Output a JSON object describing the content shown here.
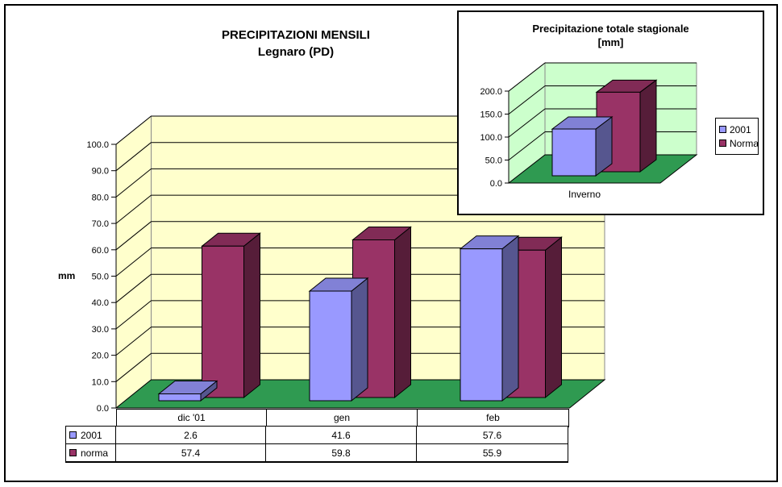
{
  "title": {
    "line1": "PRECIPITAZIONI MENSILI",
    "line2": "Legnaro (PD)"
  },
  "chart_data": [
    {
      "id": "main-monthly-precipitation",
      "type": "bar",
      "style": "3d-column",
      "title": "PRECIPITAZIONI MENSILI Legnaro (PD)",
      "categories": [
        "dic '01",
        "gen",
        "feb"
      ],
      "series": [
        {
          "name": "2001",
          "values": [
            2.6,
            41.6,
            57.6
          ],
          "color": "#9999FF"
        },
        {
          "name": "norma",
          "values": [
            57.4,
            59.8,
            55.9
          ],
          "color": "#993366"
        }
      ],
      "xlabel": "",
      "ylabel": "mm",
      "ylim": [
        0,
        100
      ],
      "ytick_step": 10,
      "ytick_format": "one-decimal",
      "grid": true,
      "wall_color": "#FFFFCC",
      "floor_color": "#2F9A51",
      "legend_position": "data-table-left"
    },
    {
      "id": "inset-seasonal-total",
      "type": "bar",
      "style": "3d-column",
      "title": "Precipitazione totale stagionale [mm]",
      "title_line1": "Precipitazione totale stagionale",
      "title_line2": "[mm]",
      "categories": [
        "Inverno"
      ],
      "series": [
        {
          "name": "2001",
          "values": [
            101.8
          ],
          "color": "#9999FF"
        },
        {
          "name": "Norma",
          "values": [
            173.1
          ],
          "color": "#993366"
        }
      ],
      "xlabel": "",
      "ylabel": "",
      "ylim": [
        0,
        200
      ],
      "ytick_step": 50,
      "ytick_format": "one-decimal",
      "grid": true,
      "wall_color": "#CCFFCC",
      "floor_color": "#2F9A51",
      "legend_position": "right"
    }
  ],
  "table": {
    "columns": [
      "dic '01",
      "gen",
      "feb"
    ],
    "rows": [
      {
        "label": "2001",
        "values": [
          "2.6",
          "41.6",
          "57.6"
        ]
      },
      {
        "label": "norma",
        "values": [
          "57.4",
          "59.8",
          "55.9"
        ]
      }
    ]
  }
}
